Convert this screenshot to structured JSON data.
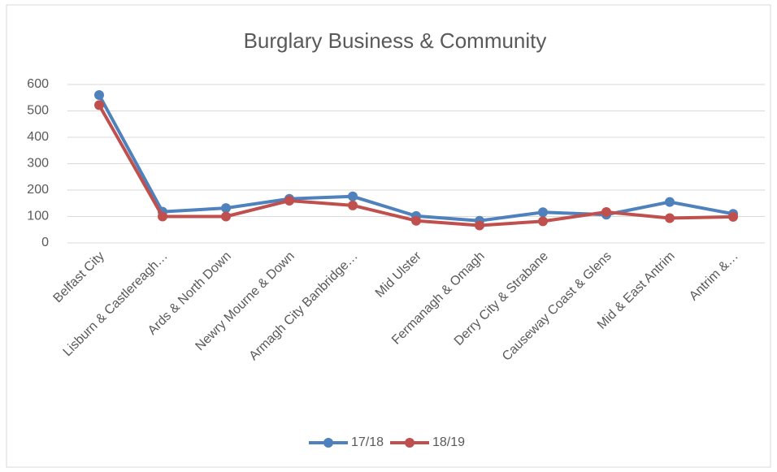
{
  "chart_data": {
    "type": "line",
    "title": "Burglary Business & Community",
    "categories": [
      "Belfast City",
      "Lisburn & Castlereagh…",
      "Ards & North Down",
      "Newry Mourne & Down",
      "Armagh City Banbridge…",
      "Mid Ulster",
      "Fermanagh & Omagh",
      "Derry City & Strabane",
      "Causeway Coast & Glens",
      "Mid & East Antrim",
      "Antrim &…"
    ],
    "series": [
      {
        "name": "17/18",
        "color": "#4f81bd",
        "values": [
          560,
          118,
          132,
          167,
          176,
          102,
          84,
          116,
          107,
          155,
          110
        ]
      },
      {
        "name": "18/19",
        "color": "#c0504d",
        "values": [
          522,
          100,
          100,
          160,
          142,
          84,
          66,
          82,
          117,
          94,
          99
        ]
      }
    ],
    "ylim": [
      0,
      600
    ],
    "yticks": [
      0,
      100,
      200,
      300,
      400,
      500,
      600
    ],
    "grid": true,
    "legend": "bottom"
  }
}
